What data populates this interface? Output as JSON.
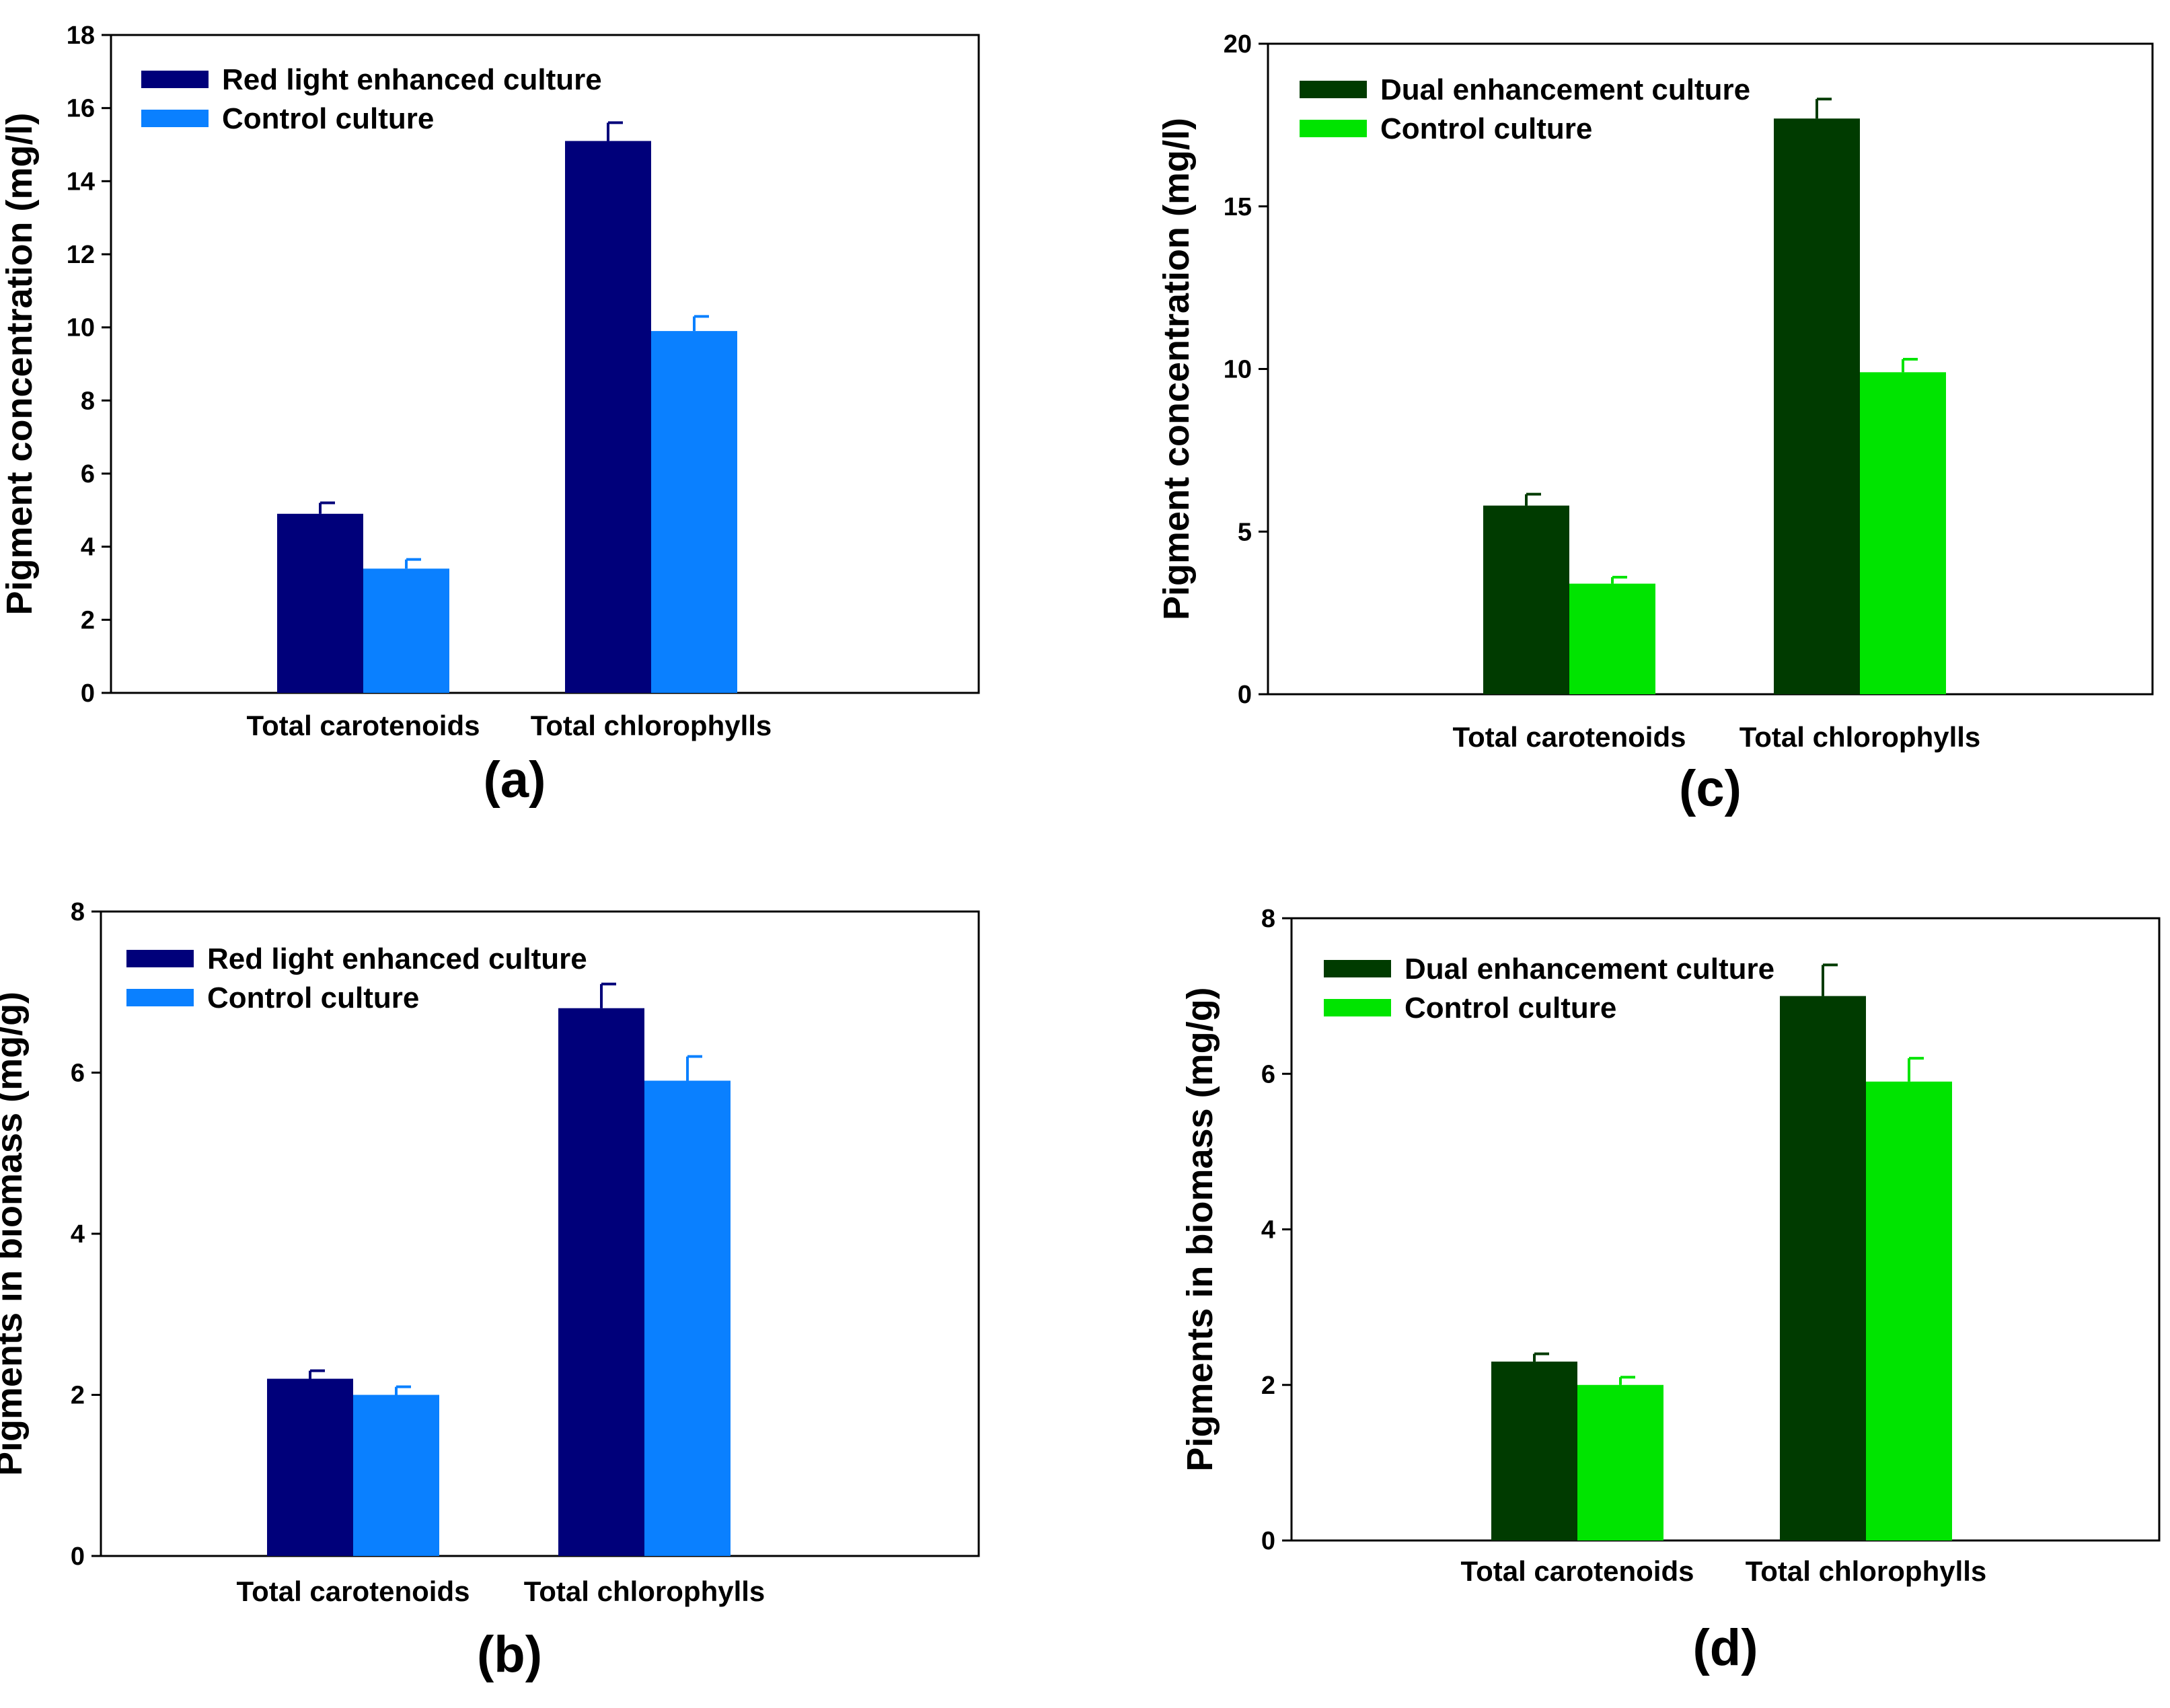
{
  "chart_data": [
    {
      "id": "a",
      "type": "bar",
      "panel_label": "(a)",
      "title": "",
      "xlabel": "",
      "ylabel": "Pigment concentration (mg/l)",
      "ylim": [
        0,
        18
      ],
      "yticks": [
        "0",
        "2",
        "4",
        "6",
        "8",
        "10",
        "12",
        "14",
        "16",
        "18"
      ],
      "categories": [
        "Total carotenoids",
        "Total chlorophylls"
      ],
      "grid": false,
      "legend_position": "top-left",
      "series": [
        {
          "name": "Red light enhanced culture",
          "color": "#00007a",
          "values": [
            4.9,
            15.1
          ],
          "errors": [
            0.3,
            0.5
          ]
        },
        {
          "name": "Control culture",
          "color": "#0a80ff",
          "values": [
            3.4,
            9.9
          ],
          "errors": [
            0.25,
            0.4
          ]
        }
      ]
    },
    {
      "id": "b",
      "type": "bar",
      "panel_label": "(b)",
      "title": "",
      "xlabel": "",
      "ylabel": "Pigments in biomass (mg/g)",
      "ylim": [
        0,
        8
      ],
      "yticks": [
        "0",
        "2",
        "4",
        "6",
        "8"
      ],
      "categories": [
        "Total carotenoids",
        "Total chlorophylls"
      ],
      "grid": false,
      "legend_position": "top-left",
      "series": [
        {
          "name": "Red light enhanced culture",
          "color": "#00007a",
          "values": [
            2.2,
            6.8
          ],
          "errors": [
            0.1,
            0.3
          ]
        },
        {
          "name": "Control culture",
          "color": "#0a80ff",
          "values": [
            2.0,
            5.9
          ],
          "errors": [
            0.1,
            0.3
          ]
        }
      ]
    },
    {
      "id": "c",
      "type": "bar",
      "panel_label": "(c)",
      "title": "",
      "xlabel": "",
      "ylabel": "Pigment concentration (mg/l)",
      "ylim": [
        0,
        20
      ],
      "yticks": [
        "0",
        "5",
        "10",
        "15",
        "20"
      ],
      "categories": [
        "Total carotenoids",
        "Total chlorophylls"
      ],
      "grid": false,
      "legend_position": "top-left",
      "series": [
        {
          "name": "Dual enhancement culture",
          "color": "#003b00",
          "values": [
            5.8,
            17.7
          ],
          "errors": [
            0.35,
            0.6
          ]
        },
        {
          "name": "Control culture",
          "color": "#00e400",
          "values": [
            3.4,
            9.9
          ],
          "errors": [
            0.2,
            0.4
          ]
        }
      ]
    },
    {
      "id": "d",
      "type": "bar",
      "panel_label": "(d)",
      "title": "",
      "xlabel": "",
      "ylabel": "Pigments in biomass (mg/g)",
      "ylim": [
        0,
        8
      ],
      "yticks": [
        "0",
        "2",
        "4",
        "6",
        "8"
      ],
      "categories": [
        "Total carotenoids",
        "Total chlorophylls"
      ],
      "grid": false,
      "legend_position": "top-left",
      "series": [
        {
          "name": "Dual enhancement culture",
          "color": "#003b00",
          "values": [
            2.3,
            7.0
          ],
          "errors": [
            0.1,
            0.4
          ]
        },
        {
          "name": "Control culture",
          "color": "#00e400",
          "values": [
            2.0,
            5.9
          ],
          "errors": [
            0.1,
            0.3
          ]
        }
      ]
    }
  ]
}
